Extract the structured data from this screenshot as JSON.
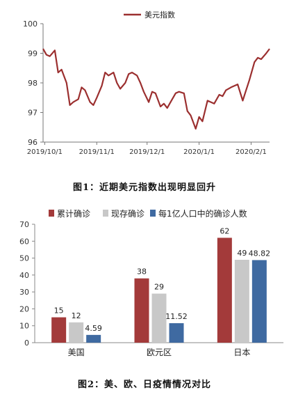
{
  "chart_data": [
    {
      "type": "line",
      "title": "",
      "xlabel": "",
      "ylabel": "",
      "legend": "top-center",
      "ylim": [
        96,
        100
      ],
      "yticks": [
        96,
        97,
        98,
        99,
        100
      ],
      "xticks": [
        "2019/10/1",
        "2019/11/1",
        "2019/12/1",
        "2020/1/1",
        "2020/2/1"
      ],
      "x_start": "2019/9/30",
      "x_end": "2020/2/12",
      "grid": false,
      "color": "#9b2f2f",
      "series": [
        {
          "name": "美元指数",
          "x": [
            "2019/9/30",
            "2019/10/2",
            "2019/10/4",
            "2019/10/7",
            "2019/10/9",
            "2019/10/11",
            "2019/10/14",
            "2019/10/16",
            "2019/10/18",
            "2019/10/21",
            "2019/10/23",
            "2019/10/25",
            "2019/10/28",
            "2019/10/30",
            "2019/11/1",
            "2019/11/4",
            "2019/11/6",
            "2019/11/8",
            "2019/11/11",
            "2019/11/13",
            "2019/11/15",
            "2019/11/18",
            "2019/11/20",
            "2019/11/22",
            "2019/11/25",
            "2019/11/27",
            "2019/11/29",
            "2019/12/2",
            "2019/12/4",
            "2019/12/6",
            "2019/12/9",
            "2019/12/11",
            "2019/12/13",
            "2019/12/16",
            "2019/12/18",
            "2019/12/20",
            "2019/12/23",
            "2019/12/25",
            "2019/12/27",
            "2019/12/30",
            "2020/1/1",
            "2020/1/3",
            "2020/1/6",
            "2020/1/8",
            "2020/1/10",
            "2020/1/13",
            "2020/1/15",
            "2020/1/17",
            "2020/1/20",
            "2020/1/22",
            "2020/1/24",
            "2020/1/27",
            "2020/1/29",
            "2020/1/31",
            "2020/2/3",
            "2020/2/5",
            "2020/2/7",
            "2020/2/10",
            "2020/2/12"
          ],
          "values": [
            99.15,
            98.95,
            98.9,
            99.1,
            98.35,
            98.45,
            98.0,
            97.25,
            97.35,
            97.45,
            97.85,
            97.75,
            97.35,
            97.25,
            97.5,
            97.9,
            98.35,
            98.25,
            98.35,
            98.0,
            97.8,
            98.0,
            98.3,
            98.35,
            98.25,
            98.0,
            97.7,
            97.35,
            97.7,
            97.65,
            97.2,
            97.3,
            97.15,
            97.45,
            97.65,
            97.7,
            97.65,
            97.05,
            96.9,
            96.45,
            96.85,
            96.7,
            97.4,
            97.35,
            97.3,
            97.6,
            97.55,
            97.75,
            97.85,
            97.9,
            97.95,
            97.4,
            97.75,
            98.1,
            98.7,
            98.85,
            98.8,
            99.0,
            99.15
          ]
        }
      ]
    },
    {
      "type": "bar",
      "title": "",
      "xlabel": "",
      "ylabel": "",
      "legend": "top",
      "ylim": [
        0,
        70
      ],
      "yticks": [
        0,
        10,
        20,
        30,
        40,
        50,
        60,
        70
      ],
      "grid": false,
      "categories": [
        "美国",
        "欧元区",
        "日本"
      ],
      "series": [
        {
          "name": "累计确诊",
          "color": "#a33a3a",
          "values": [
            15,
            38,
            62
          ],
          "labels": [
            "15",
            "38",
            "62"
          ]
        },
        {
          "name": "现存确诊",
          "color": "#c8c8c8",
          "values": [
            12,
            29,
            49
          ],
          "labels": [
            "12",
            "29",
            "49"
          ]
        },
        {
          "name": "每1亿人口中的确诊人数",
          "color": "#3f6aa1",
          "values": [
            4.59,
            11.52,
            48.82
          ],
          "labels": [
            "4.59",
            "11.52",
            "48.82"
          ]
        }
      ]
    }
  ],
  "captions": {
    "fig1": "图1：近期美元指数出现明显回升",
    "fig2": "图2：美、欧、日疫情情况对比"
  }
}
